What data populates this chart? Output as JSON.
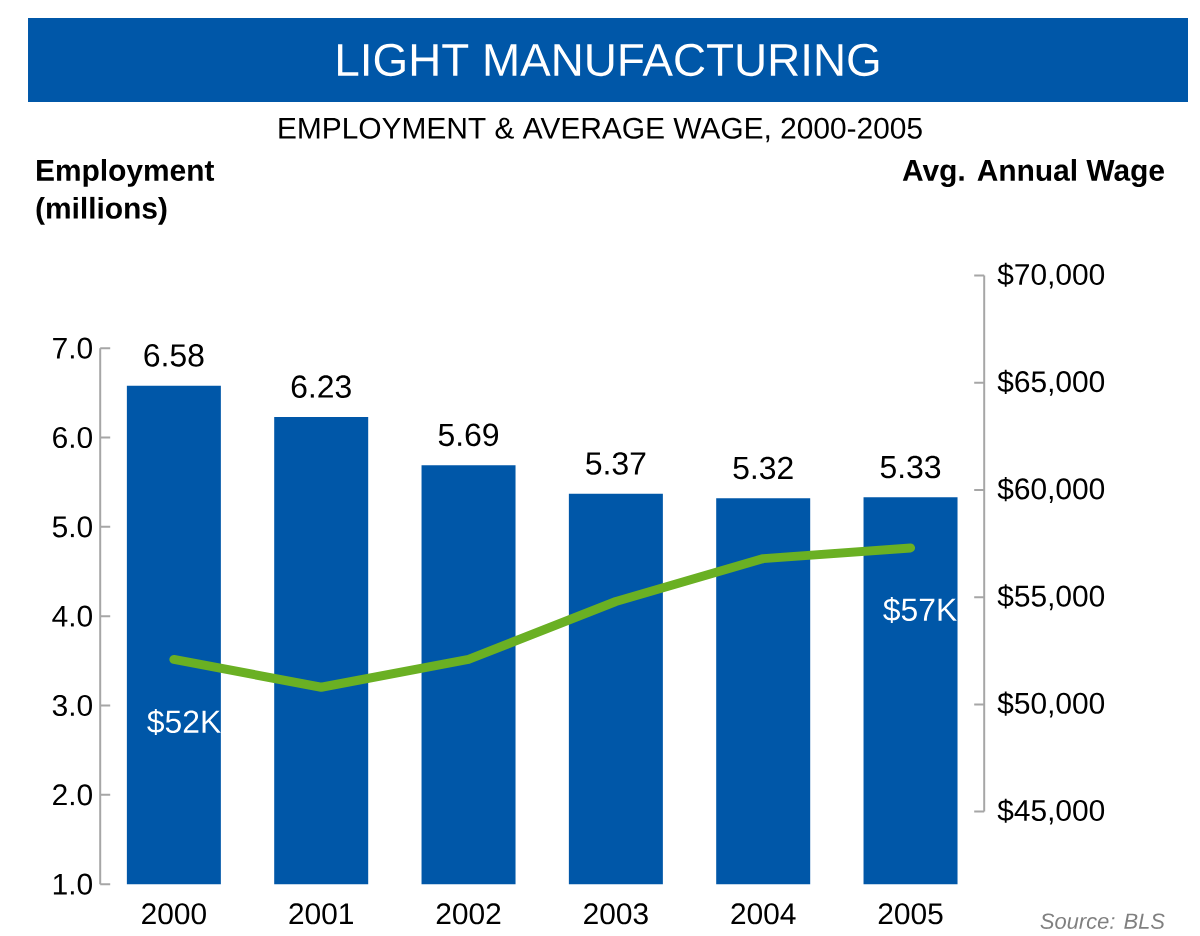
{
  "chart_data": {
    "type": "bar",
    "title": "LIGHT MANUFACTURING",
    "subtitle": "EMPLOYMENT & AVERAGE WAGE, 2000-2005",
    "ylabel": "Employment (millions)",
    "y2label": "Avg. Annual Wage",
    "categories": [
      "2000",
      "2001",
      "2002",
      "2003",
      "2004",
      "2005"
    ],
    "series": [
      {
        "color": "#0057a8",
        "values": [
          6.58,
          6.23,
          5.69,
          5.37,
          5.32,
          5.33
        ],
        "value_labels": [
          "6.58",
          "6.23",
          "5.69",
          "5.37",
          "5.32",
          "5.33"
        ]
      },
      {
        "type": "line",
        "axis": "y2",
        "color": "#6ab023",
        "values": [
          52100,
          50800,
          52100,
          54800,
          56800,
          57300
        ]
      }
    ],
    "ylim": [
      1,
      7
    ],
    "yticks": [
      {
        "value": 1,
        "label": "1.0"
      },
      {
        "value": 2,
        "label": "2.0"
      },
      {
        "value": 3,
        "label": "3.0"
      },
      {
        "value": 4,
        "label": "4.0"
      },
      {
        "value": 5,
        "label": "5.0"
      },
      {
        "value": 6,
        "label": "6.0"
      },
      {
        "value": 7,
        "label": "7.0"
      }
    ],
    "y2lim": [
      45000,
      70000
    ],
    "y2ticks": [
      {
        "value": 45000,
        "label": "$45,000"
      },
      {
        "value": 50000,
        "label": "$50,000"
      },
      {
        "value": 55000,
        "label": "$55,000"
      },
      {
        "value": 60000,
        "label": "$60,000"
      },
      {
        "value": 65000,
        "label": "$65,000"
      },
      {
        "value": 70000,
        "label": "$70,000"
      }
    ],
    "annotations": [
      "$52K",
      "$57K",
      "Source: BLS"
    ],
    "grid": false,
    "marker": "none"
  }
}
